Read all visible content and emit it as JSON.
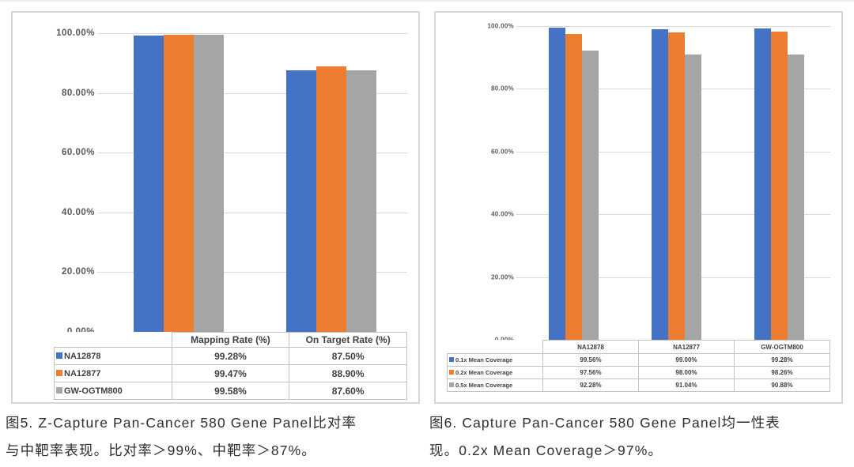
{
  "colors": {
    "series_blue": "#4472C4",
    "series_orange": "#ED7D31",
    "series_gray": "#A5A5A5",
    "panel_border": "#d7d7d7",
    "gridline": "#d9d9d9",
    "axis_text": "#595959",
    "table_text": "#3f3f3f"
  },
  "figures": [
    {
      "caption_line1": "图5. Z-Capture Pan-Cancer 580 Gene Panel比对率",
      "caption_line2": "与中靶率表现。比对率＞99%、中靶率＞87%。"
    },
    {
      "caption_line1": "图6. Capture Pan-Cancer 580 Gene Panel均一性表",
      "caption_line2": "现。0.2x Mean Coverage＞97%。"
    }
  ],
  "chart_data": [
    {
      "type": "bar",
      "title": "",
      "categories": [
        "Mapping Rate (%)",
        "On Target Rate (%)"
      ],
      "series": [
        {
          "name": "NA12878",
          "color": "#4472C4",
          "values": [
            99.28,
            87.5
          ],
          "value_labels": [
            "99.28%",
            "87.50%"
          ]
        },
        {
          "name": "NA12877",
          "color": "#ED7D31",
          "values": [
            99.47,
            88.9
          ],
          "value_labels": [
            "99.47%",
            "88.90%"
          ]
        },
        {
          "name": "GW-OGTM800",
          "color": "#A5A5A5",
          "values": [
            99.58,
            87.6
          ],
          "value_labels": [
            "99.58%",
            "87.60%"
          ]
        }
      ],
      "ylim": [
        0,
        100
      ],
      "yticks": [
        {
          "label": "100.00%",
          "value": 100
        },
        {
          "label": "80.00%",
          "value": 80
        },
        {
          "label": "60.00%",
          "value": 60
        },
        {
          "label": "40.00%",
          "value": 40
        },
        {
          "label": "20.00%",
          "value": 20
        },
        {
          "label": "0.00%",
          "value": 0
        }
      ],
      "grid": true,
      "legend_position": "data-table-rows"
    },
    {
      "type": "bar",
      "title": "",
      "categories": [
        "NA12878",
        "NA12877",
        "GW-OGTM800"
      ],
      "series": [
        {
          "name": "0.1x Mean Coverage",
          "color": "#4472C4",
          "values": [
            99.56,
            99.0,
            99.28
          ],
          "value_labels": [
            "99.56%",
            "99.00%",
            "99.28%"
          ]
        },
        {
          "name": "0.2x Mean Coverage",
          "color": "#ED7D31",
          "values": [
            97.56,
            98.0,
            98.26
          ],
          "value_labels": [
            "97.56%",
            "98.00%",
            "98.26%"
          ]
        },
        {
          "name": "0.5x Mean Coverage",
          "color": "#A5A5A5",
          "values": [
            92.28,
            91.04,
            90.88
          ],
          "value_labels": [
            "92.28%",
            "91.04%",
            "90.88%"
          ]
        }
      ],
      "ylim": [
        0,
        100
      ],
      "yticks": [
        {
          "label": "100.00%",
          "value": 100
        },
        {
          "label": "80.00%",
          "value": 80
        },
        {
          "label": "60.00%",
          "value": 60
        },
        {
          "label": "40.00%",
          "value": 40
        },
        {
          "label": "20.00%",
          "value": 20
        },
        {
          "label": "0.00%",
          "value": 0
        }
      ],
      "grid": true,
      "legend_position": "data-table-rows"
    }
  ]
}
